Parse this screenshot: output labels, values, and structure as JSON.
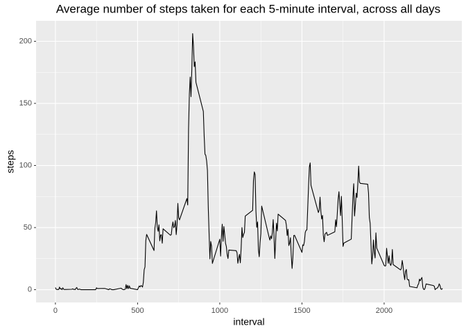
{
  "chart_data": {
    "type": "line",
    "title": "Average number of steps taken for each 5-minute interval, across all days",
    "x_label": "interval",
    "y_label": "steps",
    "x": [
      0,
      5,
      10,
      15,
      20,
      25,
      30,
      35,
      40,
      45,
      50,
      55,
      100,
      105,
      110,
      115,
      120,
      125,
      130,
      135,
      140,
      145,
      150,
      155,
      200,
      205,
      210,
      215,
      220,
      225,
      230,
      235,
      240,
      245,
      250,
      255,
      300,
      305,
      310,
      315,
      320,
      325,
      330,
      335,
      340,
      345,
      350,
      355,
      400,
      405,
      410,
      415,
      420,
      425,
      430,
      435,
      440,
      445,
      450,
      455,
      500,
      505,
      510,
      515,
      520,
      525,
      530,
      535,
      540,
      545,
      550,
      555,
      600,
      605,
      610,
      615,
      620,
      625,
      630,
      635,
      640,
      645,
      650,
      655,
      700,
      705,
      710,
      715,
      720,
      725,
      730,
      735,
      740,
      745,
      750,
      755,
      800,
      805,
      810,
      815,
      820,
      825,
      830,
      835,
      840,
      845,
      850,
      855,
      900,
      905,
      910,
      915,
      920,
      925,
      930,
      935,
      940,
      945,
      950,
      955,
      1000,
      1005,
      1010,
      1015,
      1020,
      1025,
      1030,
      1035,
      1040,
      1045,
      1050,
      1055,
      1100,
      1105,
      1110,
      1115,
      1120,
      1125,
      1130,
      1135,
      1140,
      1145,
      1150,
      1155,
      1200,
      1205,
      1210,
      1215,
      1220,
      1225,
      1230,
      1235,
      1240,
      1245,
      1250,
      1255,
      1300,
      1305,
      1310,
      1315,
      1320,
      1325,
      1330,
      1335,
      1340,
      1345,
      1350,
      1355,
      1400,
      1405,
      1410,
      1415,
      1420,
      1425,
      1430,
      1435,
      1440,
      1445,
      1450,
      1455,
      1500,
      1505,
      1510,
      1515,
      1520,
      1525,
      1530,
      1535,
      1540,
      1545,
      1550,
      1555,
      1600,
      1605,
      1610,
      1615,
      1620,
      1625,
      1630,
      1635,
      1640,
      1645,
      1650,
      1655,
      1700,
      1705,
      1710,
      1715,
      1720,
      1725,
      1730,
      1735,
      1740,
      1745,
      1750,
      1755,
      1800,
      1805,
      1810,
      1815,
      1820,
      1825,
      1830,
      1835,
      1840,
      1845,
      1850,
      1855,
      1900,
      1905,
      1910,
      1915,
      1920,
      1925,
      1930,
      1935,
      1940,
      1945,
      1950,
      1955,
      2000,
      2005,
      2010,
      2015,
      2020,
      2025,
      2030,
      2035,
      2040,
      2045,
      2050,
      2055,
      2100,
      2105,
      2110,
      2115,
      2120,
      2125,
      2130,
      2135,
      2140,
      2145,
      2150,
      2155,
      2200,
      2205,
      2210,
      2215,
      2220,
      2225,
      2230,
      2235,
      2240,
      2245,
      2250,
      2255,
      2300,
      2305,
      2310,
      2315,
      2320,
      2325,
      2330,
      2335,
      2340,
      2345,
      2350,
      2355
    ],
    "series": [
      {
        "color": "#000000",
        "values": [
          1.7,
          0.3,
          0.1,
          0.2,
          0.1,
          2.1,
          0.5,
          0.9,
          0,
          1.5,
          0.3,
          0.1,
          0.3,
          0.7,
          0.2,
          0.3,
          0,
          1.1,
          1.8,
          0.2,
          0.2,
          0.4,
          0.3,
          0,
          0,
          0,
          0,
          0,
          0,
          0,
          0,
          0,
          0,
          0,
          1.5,
          0.9,
          1,
          0.8,
          0.6,
          0.4,
          0.2,
          0,
          0.7,
          0.5,
          0.2,
          0,
          0,
          0,
          1.2,
          0.5,
          0.2,
          0,
          0.1,
          0.4,
          4.1,
          0.7,
          3.5,
          0.8,
          3.1,
          1.1,
          0,
          1.6,
          3,
          2.2,
          3.3,
          3,
          2.1,
          6,
          16,
          18.3,
          39.5,
          44.5,
          31.5,
          49.3,
          53.8,
          63.5,
          50,
          47,
          52.2,
          39.3,
          44,
          44.2,
          37.4,
          49,
          43.8,
          44.4,
          50.5,
          54.5,
          49.9,
          51,
          55.7,
          44.3,
          52.3,
          69.5,
          57.8,
          56.2,
          73.4,
          68.2,
          129.4,
          157.5,
          171.2,
          155.4,
          177.3,
          206.2,
          195.9,
          179.6,
          183.4,
          167,
          143.5,
          124,
          109.1,
          108.1,
          103.7,
          96,
          66.2,
          45.2,
          24.8,
          38.8,
          35,
          21.1,
          40.6,
          27,
          42.4,
          52.7,
          38.9,
          50.8,
          44.3,
          37.4,
          34.7,
          28.3,
          25.1,
          31.9,
          31.4,
          29.7,
          21.3,
          25.5,
          28.4,
          21.6,
          33.3,
          50,
          42,
          44.6,
          46,
          59.3,
          63.9,
          87.7,
          94.8,
          92.8,
          63.4,
          50.2,
          54.5,
          32.4,
          26.5,
          37.7,
          45.1,
          67.3,
          42.3,
          39.9,
          43.3,
          41,
          46.2,
          56.4,
          42.8,
          25.1,
          39.9,
          53.5,
          47.3,
          60.8,
          55.8,
          52,
          43.6,
          48.7,
          35.5,
          37.5,
          41.8,
          27.5,
          17.1,
          26.1,
          43.6,
          43.8,
          30,
          36.1,
          35.5,
          38.8,
          46,
          47.8,
          48.1,
          65.3,
          82.9,
          98.7,
          102.1,
          84,
          62.1,
          64.1,
          74.5,
          63.2,
          56.9,
          59.8,
          43.9,
          38.6,
          44.7,
          45.5,
          46.2,
          43.7,
          46.6,
          56.3,
          50.7,
          61.2,
          72.7,
          78.9,
          68.9,
          59.7,
          75.1,
          56.5,
          34.8,
          37.5,
          40.7,
          58,
          74.7,
          85.3,
          59.3,
          67.8,
          77.7,
          74.2,
          85.3,
          99.5,
          86.6,
          85.6,
          84.9,
          77.8,
          58,
          53.4,
          36.3,
          20.7,
          27.4,
          40,
          30.2,
          25.5,
          45.7,
          33.5,
          19.6,
          19,
          19.3,
          33.3,
          26.8,
          21.2,
          27.3,
          21.3,
          19.5,
          21.3,
          32.3,
          20.2,
          15.9,
          17.2,
          23.5,
          19.2,
          12.5,
          8.1,
          14.7,
          16.3,
          8.7,
          7.8,
          8.1,
          2.6,
          1.5,
          3.7,
          4.8,
          8.5,
          7.1,
          8.7,
          9.8,
          2.2,
          0.3,
          0.1,
          1.6,
          4.6,
          3.3,
          2.8,
          0,
          0.8,
          1,
          1.6,
          2.6,
          4.7,
          3.3,
          0.6,
          0.2,
          1.1
        ]
      }
    ],
    "xlim": [
      -117.75,
      2472.75
    ],
    "xticks": [
      0,
      500,
      1000,
      1500,
      2000
    ],
    "ylim": [
      -10.31,
      216.48
    ],
    "yticks": [
      0,
      50,
      100,
      150,
      200
    ],
    "grid": true,
    "panel_color": "#ebebeb"
  }
}
